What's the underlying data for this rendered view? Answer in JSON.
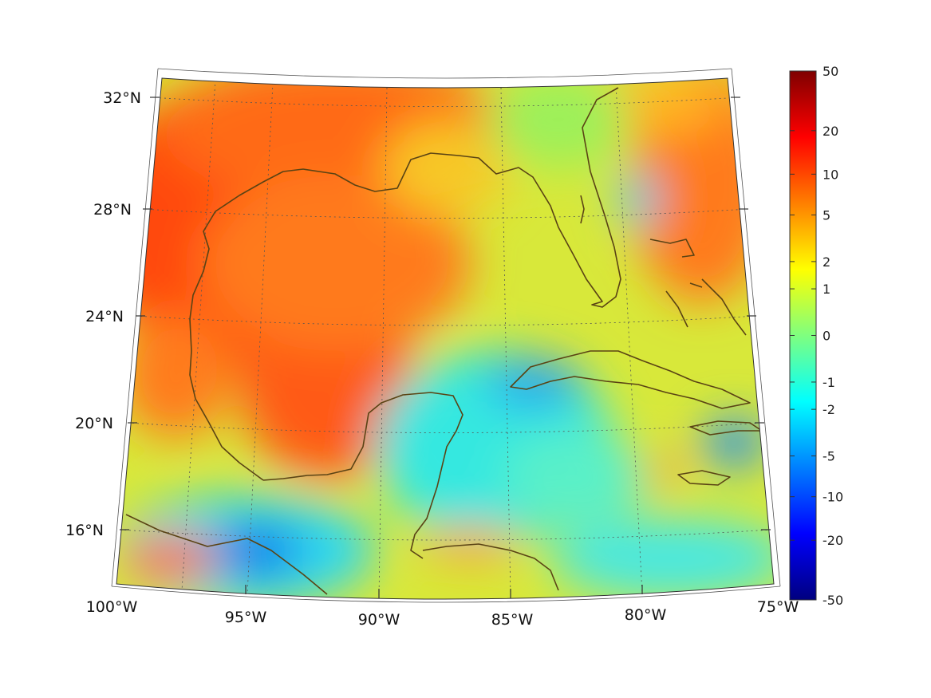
{
  "map": {
    "lon_labels": [
      "100°W",
      "95°W",
      "90°W",
      "85°W",
      "80°W",
      "75°W"
    ],
    "lat_labels": [
      "16°N",
      "20°N",
      "24°N",
      "28°N",
      "32°N"
    ],
    "coastline_color": "#5a4314",
    "graticule": "dotted"
  },
  "colorbar": {
    "labels": [
      "50",
      "20",
      "10",
      "5",
      "2",
      "1",
      "0",
      "-1",
      "-2",
      "-5",
      "-10",
      "-20",
      "-50"
    ],
    "colormap": "jet",
    "range": [
      -50,
      50
    ],
    "scale": "symmetric-log"
  }
}
